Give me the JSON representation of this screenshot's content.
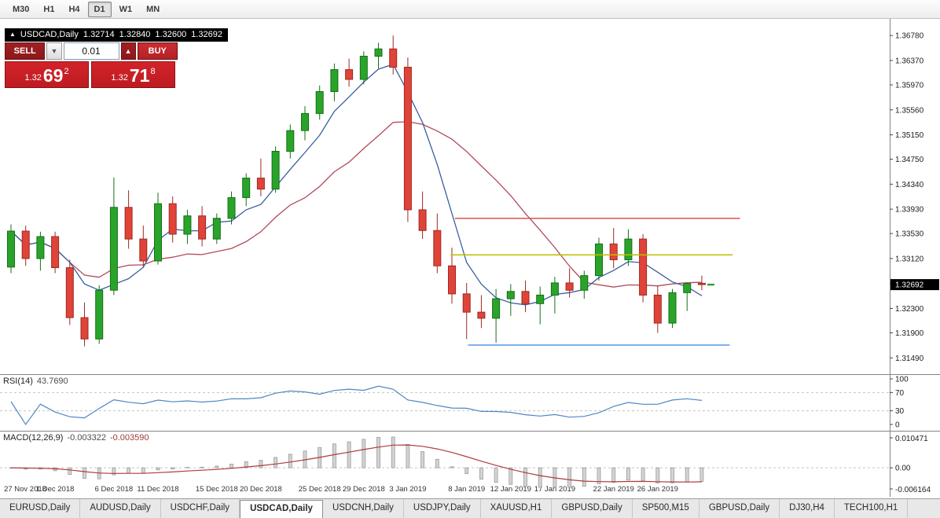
{
  "toolbar": {
    "timeframes": [
      {
        "label": "M30",
        "active": false
      },
      {
        "label": "H1",
        "active": false
      },
      {
        "label": "H4",
        "active": false
      },
      {
        "label": "D1",
        "active": true
      },
      {
        "label": "W1",
        "active": false
      },
      {
        "label": "MN",
        "active": false
      }
    ]
  },
  "chart": {
    "symbol_period": "USDCAD,Daily",
    "ohlc": {
      "open": "1.32714",
      "high": "1.32840",
      "low": "1.32600",
      "close": "1.32692"
    },
    "current_price": "1.32692",
    "title_icon": "▲"
  },
  "trade_panel": {
    "sell_label": "SELL",
    "buy_label": "BUY",
    "volume": "0.01",
    "dropdown_icon": "▼",
    "up_icon": "▲",
    "sell_price": {
      "base": "1.32",
      "pips": "69",
      "pipette": "2"
    },
    "buy_price": {
      "base": "1.32",
      "pips": "71",
      "pipette": "8"
    }
  },
  "indicators": {
    "rsi": {
      "label": "RSI(14)",
      "value": "43.7690",
      "levels": [
        "100",
        "70",
        "30",
        "0"
      ],
      "level_lines": [
        70,
        30
      ]
    },
    "macd": {
      "label": "MACD(12,26,9)",
      "value_main": "-0.003322",
      "value_signal": "-0.003590",
      "axis": [
        "0.010471",
        "0.00",
        "-0.006164"
      ]
    }
  },
  "chart_data": {
    "type": "candlestick",
    "symbol": "USDCAD",
    "period": "Daily",
    "ma_fast": 5,
    "ma_slow": 13,
    "colors": {
      "up": "#2aa32a",
      "up_line": "#147014",
      "down": "#e04338",
      "down_line": "#9e2a22",
      "ma_fast": "#3a5f9e",
      "ma_slow": "#b24a5a",
      "rsi": "#4f86c6",
      "macd_bar": "#d4d4d4",
      "macd_bar_line": "#9a9a9a",
      "macd_signal": "#b23a3a"
    },
    "price_axis_ticks": [
      "1.36780",
      "1.36370",
      "1.35970",
      "1.35560",
      "1.35150",
      "1.34750",
      "1.34340",
      "1.33930",
      "1.33530",
      "1.33120",
      "1.32710",
      "1.32300",
      "1.31900",
      "1.31490"
    ],
    "date_ticks": [
      {
        "i": 0,
        "label": "27 Nov 2018"
      },
      {
        "i": 3,
        "label": "1 Dec 2018"
      },
      {
        "i": 7,
        "label": "6 Dec 2018"
      },
      {
        "i": 10,
        "label": "11 Dec 2018"
      },
      {
        "i": 14,
        "label": "15 Dec 2018"
      },
      {
        "i": 17,
        "label": "20 Dec 2018"
      },
      {
        "i": 21,
        "label": "25 Dec 2018"
      },
      {
        "i": 24,
        "label": "29 Dec 2018"
      },
      {
        "i": 27,
        "label": "3 Jan 2019"
      },
      {
        "i": 31,
        "label": "8 Jan 2019"
      },
      {
        "i": 34,
        "label": "12 Jan 2019"
      },
      {
        "i": 37,
        "label": "17 Jan 2019"
      },
      {
        "i": 41,
        "label": "22 Jan 2019"
      },
      {
        "i": 44,
        "label": "26 Jan 2019"
      }
    ],
    "hlines": [
      {
        "price": 1.3378,
        "color": "#e05050",
        "i1": 30.2,
        "i2": 49.6
      },
      {
        "price": 1.3318,
        "color": "#bdbd00",
        "i1": 29.9,
        "i2": 49.1
      },
      {
        "price": 1.317,
        "color": "#5599e8",
        "i1": 31.1,
        "i2": 48.9
      }
    ],
    "candles": [
      [
        1.3298,
        1.3368,
        1.3288,
        1.3357
      ],
      [
        1.3357,
        1.3366,
        1.33,
        1.3312
      ],
      [
        1.3312,
        1.3356,
        1.3292,
        1.3348
      ],
      [
        1.3348,
        1.3356,
        1.3288,
        1.3297
      ],
      [
        1.3297,
        1.331,
        1.3203,
        1.3215
      ],
      [
        1.3215,
        1.324,
        1.3168,
        1.318
      ],
      [
        1.318,
        1.3268,
        1.3172,
        1.326
      ],
      [
        1.326,
        1.3445,
        1.3252,
        1.3396
      ],
      [
        1.3396,
        1.3424,
        1.3328,
        1.3344
      ],
      [
        1.3344,
        1.3366,
        1.3298,
        1.3308
      ],
      [
        1.3308,
        1.342,
        1.3302,
        1.3402
      ],
      [
        1.3402,
        1.3414,
        1.3338,
        1.3352
      ],
      [
        1.3352,
        1.3392,
        1.3336,
        1.3382
      ],
      [
        1.3382,
        1.3398,
        1.3332,
        1.3344
      ],
      [
        1.3344,
        1.3386,
        1.3336,
        1.3378
      ],
      [
        1.3378,
        1.3422,
        1.3368,
        1.3412
      ],
      [
        1.3412,
        1.3452,
        1.3398,
        1.3444
      ],
      [
        1.3444,
        1.3476,
        1.3414,
        1.3426
      ],
      [
        1.3426,
        1.3496,
        1.342,
        1.3488
      ],
      [
        1.3488,
        1.3532,
        1.3476,
        1.3522
      ],
      [
        1.3522,
        1.3562,
        1.3506,
        1.355
      ],
      [
        1.355,
        1.3596,
        1.354,
        1.3586
      ],
      [
        1.3586,
        1.3632,
        1.357,
        1.3622
      ],
      [
        1.3622,
        1.364,
        1.3594,
        1.3606
      ],
      [
        1.3606,
        1.3652,
        1.3598,
        1.3644
      ],
      [
        1.3644,
        1.3666,
        1.3624,
        1.3656
      ],
      [
        1.3656,
        1.3678,
        1.3614,
        1.3626
      ],
      [
        1.3626,
        1.3642,
        1.3372,
        1.3392
      ],
      [
        1.3392,
        1.3422,
        1.3344,
        1.3358
      ],
      [
        1.3358,
        1.3386,
        1.3288,
        1.33
      ],
      [
        1.33,
        1.333,
        1.3238,
        1.3254
      ],
      [
        1.3254,
        1.3272,
        1.318,
        1.3224
      ],
      [
        1.3224,
        1.3252,
        1.3198,
        1.3214
      ],
      [
        1.3214,
        1.3262,
        1.3174,
        1.3246
      ],
      [
        1.3246,
        1.327,
        1.3218,
        1.3258
      ],
      [
        1.3258,
        1.3276,
        1.3224,
        1.3238
      ],
      [
        1.3238,
        1.3266,
        1.3204,
        1.3252
      ],
      [
        1.3252,
        1.3282,
        1.3222,
        1.3272
      ],
      [
        1.3272,
        1.3296,
        1.3248,
        1.326
      ],
      [
        1.326,
        1.3292,
        1.3246,
        1.3284
      ],
      [
        1.3284,
        1.3346,
        1.3276,
        1.3336
      ],
      [
        1.3336,
        1.3362,
        1.3296,
        1.331
      ],
      [
        1.331,
        1.336,
        1.33,
        1.3344
      ],
      [
        1.3344,
        1.3352,
        1.324,
        1.3252
      ],
      [
        1.3252,
        1.3268,
        1.319,
        1.3206
      ],
      [
        1.3206,
        1.3262,
        1.3198,
        1.3256
      ],
      [
        1.3256,
        1.3272,
        1.3226,
        1.3271
      ],
      [
        1.32714,
        1.3284,
        1.326,
        1.32692
      ]
    ]
  },
  "tabs": [
    {
      "label": "EURUSD,Daily",
      "active": false
    },
    {
      "label": "AUDUSD,Daily",
      "active": false
    },
    {
      "label": "USDCHF,Daily",
      "active": false
    },
    {
      "label": "USDCAD,Daily",
      "active": true
    },
    {
      "label": "USDCNH,Daily",
      "active": false
    },
    {
      "label": "USDJPY,Daily",
      "active": false
    },
    {
      "label": "XAUUSD,H1",
      "active": false
    },
    {
      "label": "GBPUSD,Daily",
      "active": false
    },
    {
      "label": "SP500,M15",
      "active": false
    },
    {
      "label": "GBPUSD,Daily",
      "active": false
    },
    {
      "label": "DJ30,H4",
      "active": false
    },
    {
      "label": "TECH100,H1",
      "active": false
    }
  ]
}
